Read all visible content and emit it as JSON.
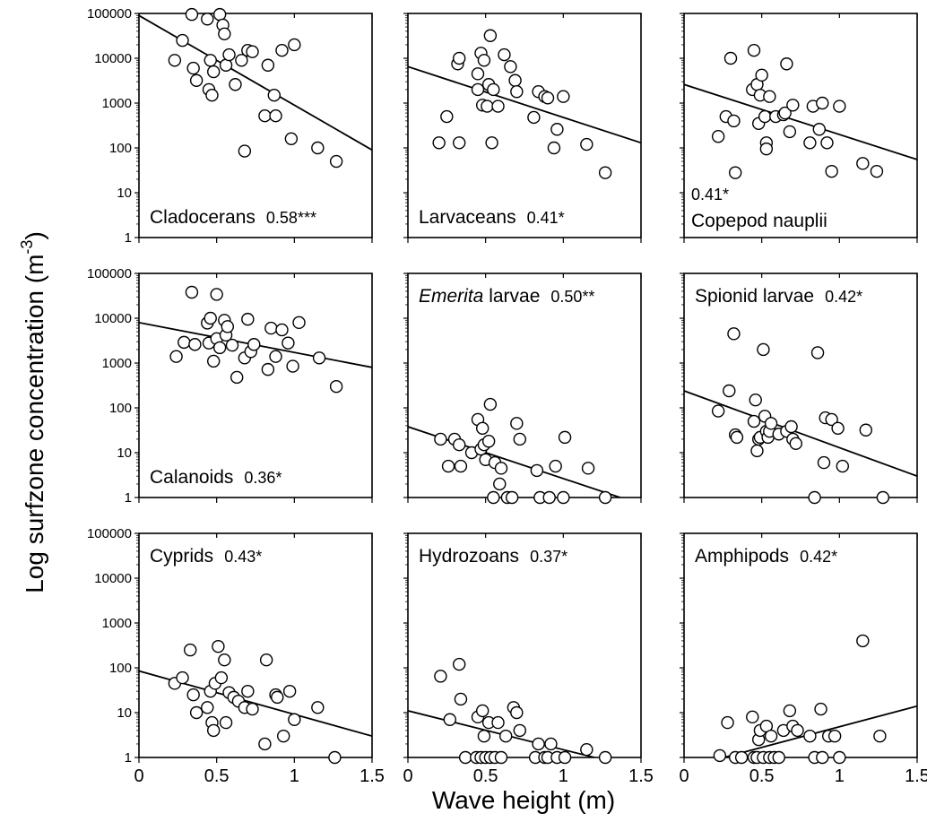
{
  "chart_data": {
    "type": "scatter",
    "ylabel": "Log surfzone concentration (m",
    "ylabel_sup": "-3",
    "ylabel_close": ")",
    "xlabel": "Wave height (m)",
    "xlim": [
      0,
      1.5
    ],
    "ylim": [
      1,
      100000
    ],
    "yscale": "log",
    "grid": false,
    "x_ticks": [
      "0",
      "0.5",
      "1",
      "1.5"
    ],
    "y_ticks": [
      "100000",
      "10000",
      "1000",
      "100",
      "10",
      "1"
    ],
    "panels": [
      {
        "name": "Cladocerans",
        "stat": "0.58***",
        "label_pos": "bottom-left",
        "line": [
          [
            0,
            90000
          ],
          [
            1.5,
            90
          ]
        ],
        "points": [
          [
            0.23,
            9000
          ],
          [
            0.28,
            25000
          ],
          [
            0.34,
            95000
          ],
          [
            0.35,
            6000
          ],
          [
            0.37,
            3200
          ],
          [
            0.44,
            75000
          ],
          [
            0.45,
            2000
          ],
          [
            0.46,
            9000
          ],
          [
            0.47,
            1500
          ],
          [
            0.48,
            5000
          ],
          [
            0.52,
            95000
          ],
          [
            0.54,
            55000
          ],
          [
            0.55,
            35000
          ],
          [
            0.56,
            7000
          ],
          [
            0.58,
            12000
          ],
          [
            0.62,
            2600
          ],
          [
            0.66,
            9000
          ],
          [
            0.68,
            85
          ],
          [
            0.7,
            15000
          ],
          [
            0.73,
            14000
          ],
          [
            0.81,
            520
          ],
          [
            0.83,
            7000
          ],
          [
            0.87,
            1500
          ],
          [
            0.88,
            520
          ],
          [
            0.92,
            15000
          ],
          [
            0.98,
            160
          ],
          [
            1.0,
            20000
          ],
          [
            1.15,
            100
          ],
          [
            1.27,
            50
          ]
        ]
      },
      {
        "name": "Larvaceans",
        "stat": "0.41*",
        "label_pos": "bottom-left",
        "line": [
          [
            0,
            6500
          ],
          [
            1.5,
            130
          ]
        ],
        "points": [
          [
            0.2,
            130
          ],
          [
            0.25,
            500
          ],
          [
            0.32,
            7500
          ],
          [
            0.33,
            10000
          ],
          [
            0.33,
            130
          ],
          [
            0.45,
            2000
          ],
          [
            0.45,
            4500
          ],
          [
            0.47,
            13000
          ],
          [
            0.48,
            900
          ],
          [
            0.49,
            9000
          ],
          [
            0.51,
            850
          ],
          [
            0.52,
            2600
          ],
          [
            0.53,
            32000
          ],
          [
            0.54,
            130
          ],
          [
            0.55,
            2000
          ],
          [
            0.58,
            850
          ],
          [
            0.62,
            12000
          ],
          [
            0.66,
            6500
          ],
          [
            0.69,
            3200
          ],
          [
            0.7,
            1800
          ],
          [
            0.81,
            480
          ],
          [
            0.84,
            1800
          ],
          [
            0.88,
            1400
          ],
          [
            0.9,
            1300
          ],
          [
            0.94,
            100
          ],
          [
            0.96,
            260
          ],
          [
            1.0,
            1400
          ],
          [
            1.15,
            120
          ],
          [
            1.27,
            28
          ]
        ]
      },
      {
        "name": "Copepod nauplii",
        "stat": "0.41*",
        "label_pos": "bottom-left-stacked",
        "line": [
          [
            0,
            2600
          ],
          [
            1.5,
            55
          ]
        ],
        "points": [
          [
            0.22,
            180
          ],
          [
            0.27,
            500
          ],
          [
            0.3,
            10000
          ],
          [
            0.32,
            400
          ],
          [
            0.33,
            28
          ],
          [
            0.44,
            2000
          ],
          [
            0.45,
            15000
          ],
          [
            0.47,
            2600
          ],
          [
            0.48,
            350
          ],
          [
            0.49,
            1500
          ],
          [
            0.5,
            4200
          ],
          [
            0.52,
            500
          ],
          [
            0.53,
            130
          ],
          [
            0.53,
            95
          ],
          [
            0.55,
            1400
          ],
          [
            0.59,
            500
          ],
          [
            0.64,
            550
          ],
          [
            0.65,
            600
          ],
          [
            0.66,
            7500
          ],
          [
            0.68,
            230
          ],
          [
            0.7,
            900
          ],
          [
            0.81,
            130
          ],
          [
            0.83,
            850
          ],
          [
            0.87,
            260
          ],
          [
            0.89,
            1000
          ],
          [
            0.92,
            130
          ],
          [
            0.95,
            30
          ],
          [
            1.0,
            850
          ],
          [
            1.15,
            45
          ],
          [
            1.24,
            30
          ]
        ]
      },
      {
        "name": "Calanoids",
        "stat": "0.36*",
        "label_pos": "bottom-left",
        "line": [
          [
            0,
            8000
          ],
          [
            1.5,
            800
          ]
        ],
        "points": [
          [
            0.24,
            1400
          ],
          [
            0.29,
            2900
          ],
          [
            0.34,
            38000
          ],
          [
            0.36,
            2600
          ],
          [
            0.44,
            7800
          ],
          [
            0.45,
            2800
          ],
          [
            0.46,
            10000
          ],
          [
            0.48,
            1100
          ],
          [
            0.5,
            34000
          ],
          [
            0.5,
            3500
          ],
          [
            0.52,
            2200
          ],
          [
            0.55,
            9000
          ],
          [
            0.56,
            4200
          ],
          [
            0.57,
            6500
          ],
          [
            0.6,
            2500
          ],
          [
            0.63,
            480
          ],
          [
            0.68,
            1300
          ],
          [
            0.7,
            9500
          ],
          [
            0.72,
            1800
          ],
          [
            0.74,
            2600
          ],
          [
            0.83,
            720
          ],
          [
            0.85,
            6000
          ],
          [
            0.88,
            1400
          ],
          [
            0.92,
            5500
          ],
          [
            0.96,
            2800
          ],
          [
            0.99,
            850
          ],
          [
            1.03,
            8000
          ],
          [
            1.16,
            1300
          ],
          [
            1.27,
            300
          ]
        ]
      },
      {
        "name": "Emerita",
        "name_suffix": " larvae",
        "stat": "0.50**",
        "label_pos": "top-left",
        "line": [
          [
            0,
            38
          ],
          [
            1.5,
            0.7
          ]
        ],
        "points": [
          [
            0.21,
            20
          ],
          [
            0.26,
            5
          ],
          [
            0.3,
            20
          ],
          [
            0.33,
            15
          ],
          [
            0.34,
            5
          ],
          [
            0.41,
            10
          ],
          [
            0.45,
            55
          ],
          [
            0.47,
            12
          ],
          [
            0.48,
            35
          ],
          [
            0.49,
            15
          ],
          [
            0.5,
            7
          ],
          [
            0.52,
            18
          ],
          [
            0.53,
            120
          ],
          [
            0.55,
            1
          ],
          [
            0.56,
            6
          ],
          [
            0.59,
            2
          ],
          [
            0.6,
            4.5
          ],
          [
            0.64,
            1
          ],
          [
            0.67,
            1
          ],
          [
            0.7,
            45
          ],
          [
            0.72,
            20
          ],
          [
            0.83,
            4
          ],
          [
            0.85,
            1
          ],
          [
            0.91,
            1
          ],
          [
            0.95,
            5
          ],
          [
            1.0,
            1
          ],
          [
            1.01,
            22
          ],
          [
            1.16,
            4.5
          ],
          [
            1.27,
            1
          ]
        ]
      },
      {
        "name": "Spionid larvae",
        "stat": "0.42*",
        "label_pos": "top-left",
        "line": [
          [
            0,
            240
          ],
          [
            1.5,
            3
          ]
        ],
        "points": [
          [
            0.22,
            85
          ],
          [
            0.29,
            240
          ],
          [
            0.32,
            4500
          ],
          [
            0.33,
            25
          ],
          [
            0.34,
            22
          ],
          [
            0.45,
            50
          ],
          [
            0.46,
            150
          ],
          [
            0.47,
            11
          ],
          [
            0.48,
            20
          ],
          [
            0.49,
            22
          ],
          [
            0.51,
            2000
          ],
          [
            0.52,
            65
          ],
          [
            0.53,
            30
          ],
          [
            0.54,
            22
          ],
          [
            0.55,
            30
          ],
          [
            0.56,
            45
          ],
          [
            0.61,
            26
          ],
          [
            0.66,
            30
          ],
          [
            0.69,
            38
          ],
          [
            0.7,
            20
          ],
          [
            0.72,
            16
          ],
          [
            0.84,
            1
          ],
          [
            0.86,
            1700
          ],
          [
            0.9,
            6
          ],
          [
            0.91,
            60
          ],
          [
            0.95,
            55
          ],
          [
            0.99,
            35
          ],
          [
            1.02,
            5
          ],
          [
            1.17,
            32
          ],
          [
            1.28,
            1
          ]
        ]
      },
      {
        "name": "Cyprids",
        "stat": "0.43*",
        "label_pos": "top-left",
        "line": [
          [
            0,
            85
          ],
          [
            1.5,
            3
          ]
        ],
        "points": [
          [
            0.23,
            45
          ],
          [
            0.28,
            60
          ],
          [
            0.33,
            250
          ],
          [
            0.35,
            25
          ],
          [
            0.37,
            10
          ],
          [
            0.44,
            13
          ],
          [
            0.46,
            30
          ],
          [
            0.47,
            6
          ],
          [
            0.48,
            4
          ],
          [
            0.49,
            45
          ],
          [
            0.51,
            300
          ],
          [
            0.53,
            60
          ],
          [
            0.55,
            150
          ],
          [
            0.56,
            6
          ],
          [
            0.58,
            28
          ],
          [
            0.61,
            22
          ],
          [
            0.64,
            18
          ],
          [
            0.68,
            13
          ],
          [
            0.7,
            30
          ],
          [
            0.73,
            12
          ],
          [
            0.81,
            2
          ],
          [
            0.82,
            150
          ],
          [
            0.88,
            25
          ],
          [
            0.89,
            22
          ],
          [
            0.93,
            3
          ],
          [
            0.97,
            30
          ],
          [
            1.0,
            7
          ],
          [
            1.15,
            13
          ],
          [
            1.26,
            1
          ]
        ]
      },
      {
        "name": "Hydrozoans",
        "stat": "0.37*",
        "label_pos": "top-left",
        "line": [
          [
            0,
            11
          ],
          [
            1.2,
            1
          ]
        ],
        "points": [
          [
            0.21,
            65
          ],
          [
            0.27,
            7
          ],
          [
            0.33,
            120
          ],
          [
            0.34,
            20
          ],
          [
            0.37,
            1
          ],
          [
            0.44,
            1
          ],
          [
            0.45,
            8
          ],
          [
            0.47,
            1
          ],
          [
            0.48,
            11
          ],
          [
            0.49,
            3
          ],
          [
            0.5,
            1
          ],
          [
            0.52,
            6
          ],
          [
            0.53,
            1
          ],
          [
            0.56,
            1
          ],
          [
            0.58,
            6
          ],
          [
            0.6,
            1
          ],
          [
            0.63,
            3
          ],
          [
            0.68,
            13
          ],
          [
            0.7,
            10
          ],
          [
            0.72,
            4
          ],
          [
            0.82,
            1
          ],
          [
            0.84,
            2
          ],
          [
            0.88,
            1
          ],
          [
            0.9,
            1
          ],
          [
            0.92,
            2
          ],
          [
            0.96,
            1
          ],
          [
            1.01,
            1
          ],
          [
            1.15,
            1.5
          ],
          [
            1.27,
            1
          ]
        ]
      },
      {
        "name": "Amphipods",
        "stat": "0.42*",
        "label_pos": "top-left",
        "line": [
          [
            0,
            0.58
          ],
          [
            1.5,
            14
          ]
        ],
        "points": [
          [
            0.23,
            1.1
          ],
          [
            0.28,
            6
          ],
          [
            0.33,
            1
          ],
          [
            0.37,
            1
          ],
          [
            0.44,
            8
          ],
          [
            0.45,
            1
          ],
          [
            0.47,
            1
          ],
          [
            0.48,
            2.5
          ],
          [
            0.49,
            4
          ],
          [
            0.51,
            1
          ],
          [
            0.53,
            5
          ],
          [
            0.55,
            1
          ],
          [
            0.56,
            3
          ],
          [
            0.58,
            1
          ],
          [
            0.61,
            1
          ],
          [
            0.64,
            4
          ],
          [
            0.68,
            11
          ],
          [
            0.7,
            5
          ],
          [
            0.73,
            4
          ],
          [
            0.81,
            3
          ],
          [
            0.84,
            1
          ],
          [
            0.88,
            12
          ],
          [
            0.89,
            1
          ],
          [
            0.93,
            3
          ],
          [
            0.97,
            3
          ],
          [
            1.0,
            1
          ],
          [
            1.15,
            400
          ],
          [
            1.26,
            3
          ]
        ]
      }
    ]
  }
}
